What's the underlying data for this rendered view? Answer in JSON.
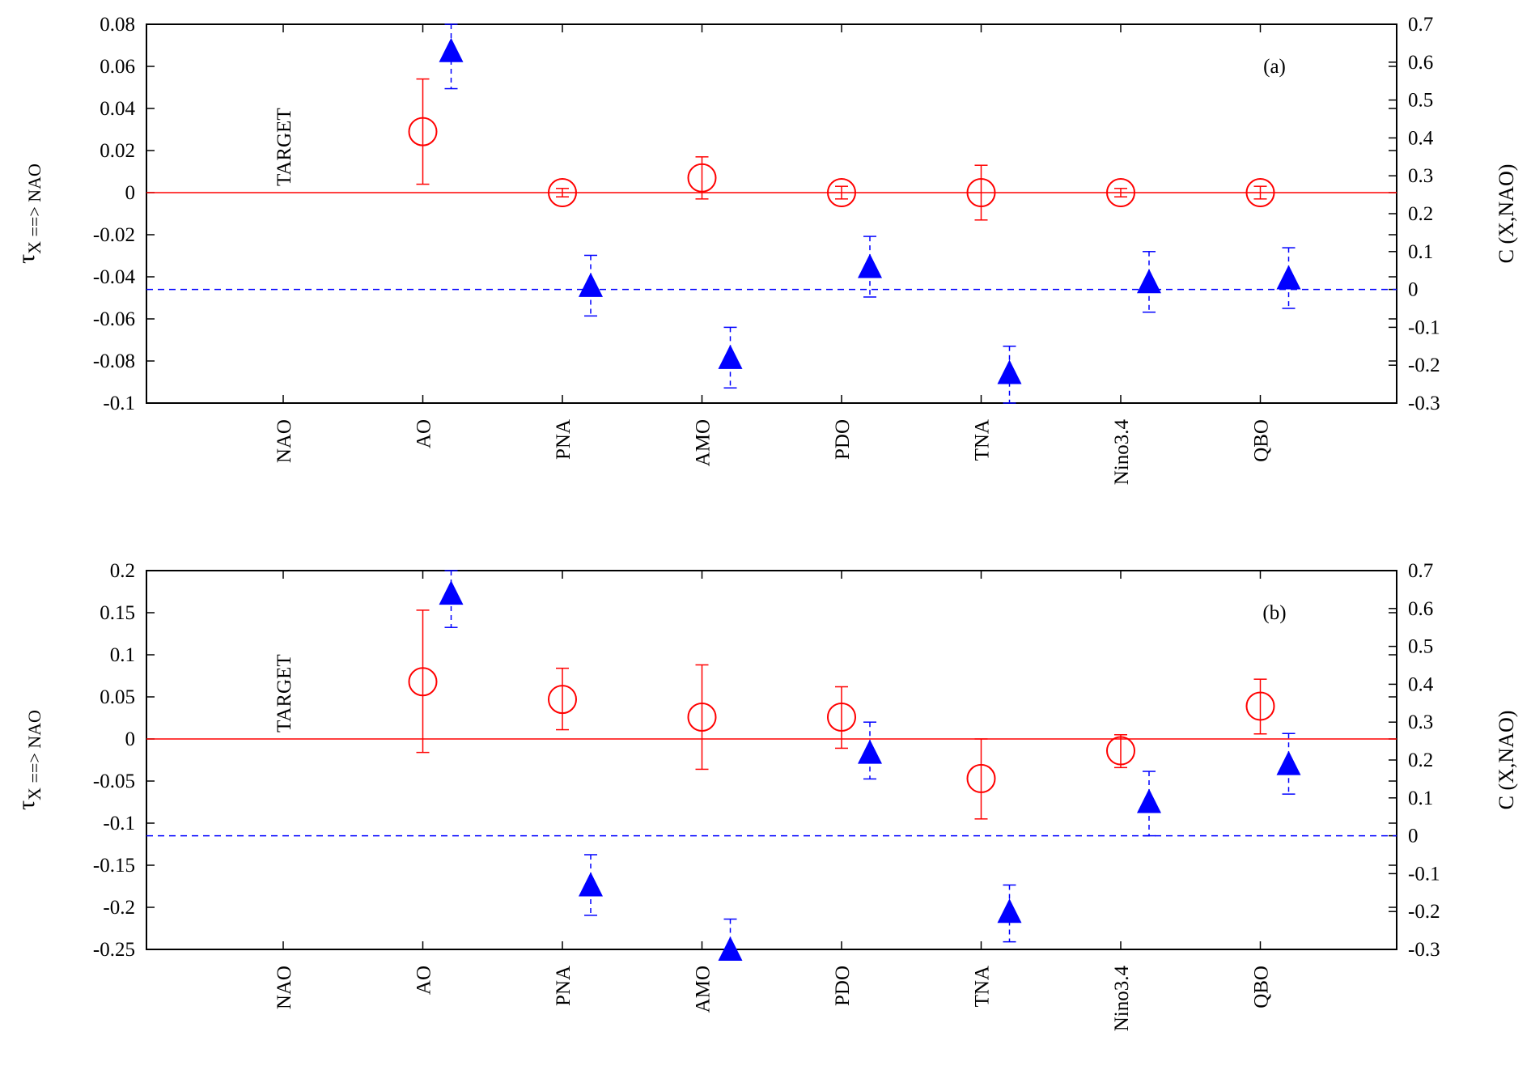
{
  "colors": {
    "tau": "#ff0000",
    "corr": "#0000ff",
    "axis": "#000000"
  },
  "markers": {
    "tau": "open-circle",
    "corr": "filled-triangle"
  },
  "chart_data": [
    {
      "type": "scatter",
      "panel_label": "(a)",
      "target_label": "TARGET",
      "categories": [
        "NAO",
        "AO",
        "PNA",
        "AMO",
        "PDO",
        "TNA",
        "Nino3.4",
        "QBO"
      ],
      "ylabel_left": {
        "main": "τ",
        "sub": "X ==> NAO"
      },
      "ylabel_right": "C (X,NAO)",
      "ylim_left": [
        -0.1,
        0.08
      ],
      "ylim_right": [
        -0.3,
        0.7
      ],
      "yticks_left": [
        "-0.1",
        "-0.08",
        "-0.06",
        "-0.04",
        "-0.02",
        "0",
        "0.02",
        "0.04",
        "0.06",
        "0.08"
      ],
      "yticks_right": [
        "-0.3",
        "-0.2",
        "-0.1",
        "0",
        "0.1",
        "0.2",
        "0.3",
        "0.4",
        "0.5",
        "0.6",
        "0.7"
      ],
      "series": [
        {
          "axis": "left",
          "categories": [
            "AO",
            "PNA",
            "AMO",
            "PDO",
            "TNA",
            "Nino3.4",
            "QBO"
          ],
          "values": [
            0.029,
            0.0,
            0.007,
            0.0,
            0.0,
            0.0,
            0.0
          ],
          "err_low": [
            0.004,
            -0.002,
            -0.003,
            -0.003,
            -0.013,
            -0.002,
            -0.003
          ],
          "err_high": [
            0.054,
            0.002,
            0.017,
            0.003,
            0.013,
            0.002,
            0.003
          ]
        },
        {
          "axis": "right",
          "categories": [
            "AO",
            "PNA",
            "AMO",
            "PDO",
            "TNA",
            "Nino3.4",
            "QBO"
          ],
          "values": [
            0.63,
            0.01,
            -0.18,
            0.06,
            -0.22,
            0.02,
            0.03
          ],
          "err_low": [
            0.53,
            -0.07,
            -0.26,
            -0.02,
            -0.3,
            -0.06,
            -0.05
          ],
          "err_high": [
            0.7,
            0.09,
            -0.1,
            0.14,
            -0.15,
            0.1,
            0.11
          ]
        }
      ],
      "reference_lines": [
        {
          "axis": "left",
          "value": 0,
          "style": "solid"
        },
        {
          "axis": "right",
          "value": 0,
          "style": "dashed"
        }
      ]
    },
    {
      "type": "scatter",
      "panel_label": "(b)",
      "target_label": "TARGET",
      "categories": [
        "NAO",
        "AO",
        "PNA",
        "AMO",
        "PDO",
        "TNA",
        "Nino3.4",
        "QBO"
      ],
      "ylabel_left": {
        "main": "τ",
        "sub": "X ==> NAO"
      },
      "ylabel_right": "C (X,NAO)",
      "ylim_left": [
        -0.25,
        0.2
      ],
      "ylim_right": [
        -0.3,
        0.7
      ],
      "yticks_left": [
        "-0.25",
        "-0.2",
        "-0.15",
        "-0.1",
        "-0.05",
        "0",
        "0.05",
        "0.1",
        "0.15",
        "0.2"
      ],
      "yticks_right": [
        "-0.3",
        "-0.2",
        "-0.1",
        "0",
        "0.1",
        "0.2",
        "0.3",
        "0.4",
        "0.5",
        "0.6",
        "0.7"
      ],
      "series": [
        {
          "axis": "left",
          "categories": [
            "AO",
            "PNA",
            "AMO",
            "PDO",
            "TNA",
            "Nino3.4",
            "QBO"
          ],
          "values": [
            0.068,
            0.047,
            0.026,
            0.026,
            -0.047,
            -0.014,
            0.039
          ],
          "err_low": [
            -0.016,
            0.011,
            -0.036,
            -0.011,
            -0.095,
            -0.034,
            0.006
          ],
          "err_high": [
            0.153,
            0.084,
            0.088,
            0.062,
            0.0,
            0.005,
            0.071
          ]
        },
        {
          "axis": "right",
          "categories": [
            "AO",
            "PNA",
            "AMO",
            "PDO",
            "TNA",
            "Nino3.4",
            "QBO"
          ],
          "values": [
            0.64,
            -0.13,
            -0.3,
            0.22,
            -0.2,
            0.09,
            0.19
          ],
          "err_low": [
            0.55,
            -0.21,
            -0.37,
            0.15,
            -0.28,
            0.0,
            0.11
          ],
          "err_high": [
            0.7,
            -0.05,
            -0.22,
            0.3,
            -0.13,
            0.17,
            0.27
          ]
        }
      ],
      "reference_lines": [
        {
          "axis": "left",
          "value": 0,
          "style": "solid"
        },
        {
          "axis": "right",
          "value": 0,
          "style": "dashed"
        }
      ]
    }
  ]
}
